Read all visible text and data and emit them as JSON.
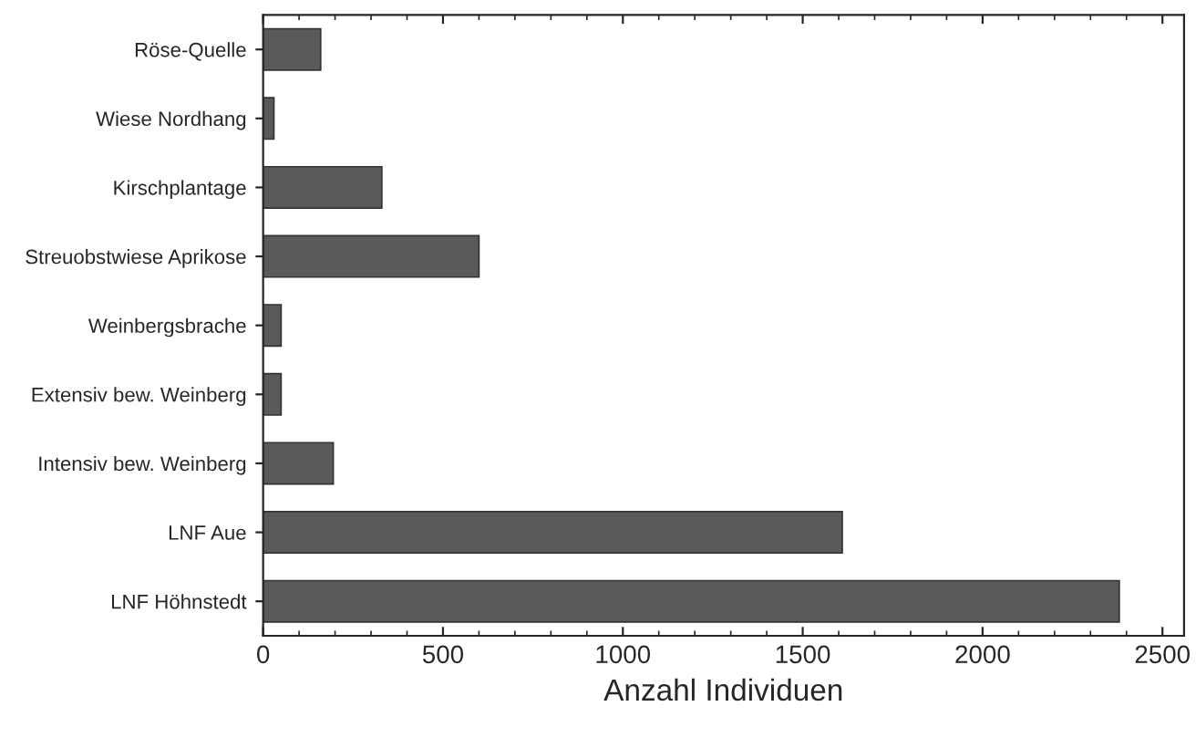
{
  "chart_data": {
    "type": "bar",
    "orientation": "horizontal",
    "xlabel": "Anzahl Individuen",
    "categories": [
      "Röse-Quelle",
      "Wiese Nordhang",
      "Kirschplantage",
      "Streuobstwiese Aprikose",
      "Weinbergsbrache",
      "Extensiv bew. Weinberg",
      "Intensiv bew. Weinberg",
      "LNF Aue",
      "LNF Höhnstedt"
    ],
    "values": [
      160,
      30,
      330,
      600,
      50,
      50,
      195,
      1610,
      2380
    ],
    "color": "#5a5a5a",
    "xlim": [
      0,
      2560
    ],
    "xticks": [
      0,
      500,
      1000,
      1500,
      2000,
      2500
    ],
    "grid": false
  }
}
